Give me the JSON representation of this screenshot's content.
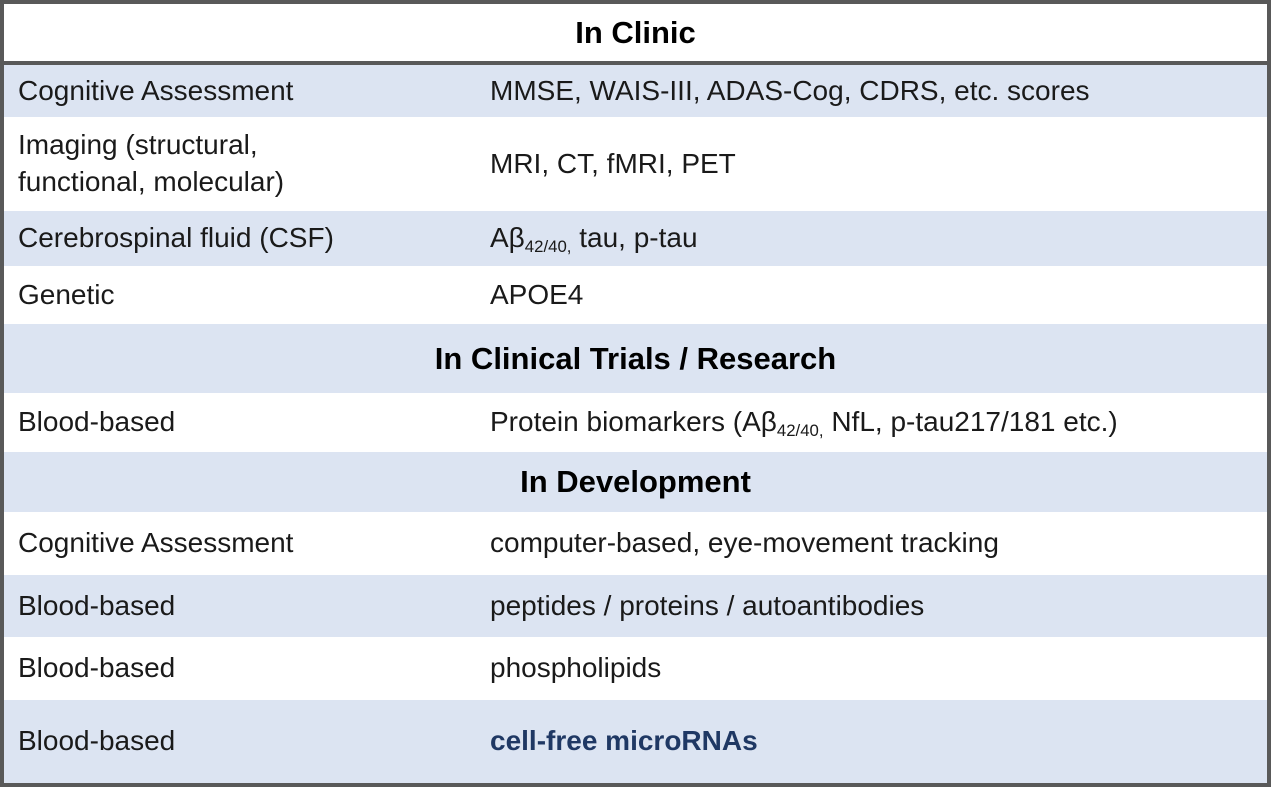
{
  "colors": {
    "border": "#595959",
    "row_shade": "#DCE4F2",
    "row_white": "#FFFFFF",
    "body_text": "#1A1A1A",
    "highlight_text": "#1F3864"
  },
  "header": {
    "title": "In Clinic"
  },
  "rows": [
    {
      "label": "Cognitive Assessment",
      "value": "MMSE, WAIS-III, ADAS-Cog, CDRS, etc. scores"
    },
    {
      "label_line1": "Imaging (structural,",
      "label_line2": "functional, molecular)",
      "value": "MRI, CT, fMRI, PET"
    },
    {
      "label": "Cerebrospinal fluid (CSF)",
      "value_prefix": "Aβ",
      "value_sub": "42/40,",
      "value_suffix": " tau, p-tau"
    },
    {
      "label": "Genetic",
      "value": "APOE4"
    },
    {
      "section": "In Clinical Trials / Research"
    },
    {
      "label": "Blood-based",
      "value_prefix": "Protein biomarkers (Aβ",
      "value_sub": "42/40,",
      "value_suffix": " NfL, p-tau217/181 etc.)"
    },
    {
      "section": "In Development"
    },
    {
      "label": "Cognitive Assessment",
      "value": "computer-based, eye-movement tracking"
    },
    {
      "label": "Blood-based",
      "value": "peptides / proteins / autoantibodies"
    },
    {
      "label": "Blood-based",
      "value": "phospholipids"
    },
    {
      "label": "Blood-based",
      "value": "cell-free microRNAs",
      "highlight": true
    }
  ]
}
